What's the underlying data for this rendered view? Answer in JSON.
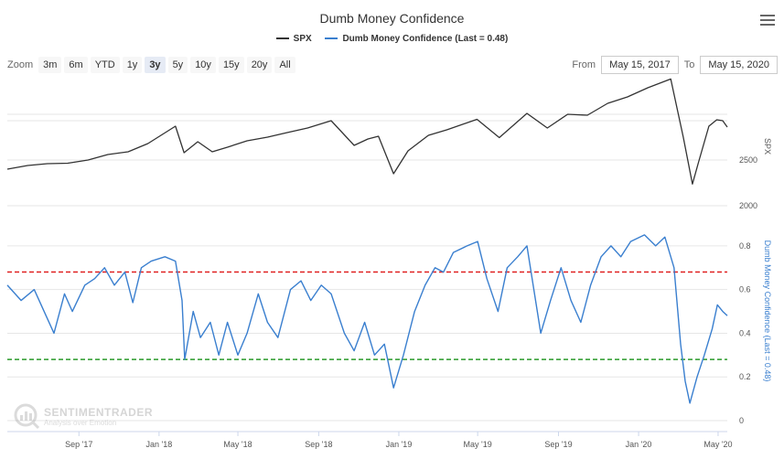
{
  "chart_data": {
    "type": "line",
    "title": "Dumb Money Confidence",
    "series": [
      {
        "name": "SPX",
        "color": "#333333",
        "axis": "SPX",
        "points": [
          [
            "2017-05-15",
            2400
          ],
          [
            "2017-06-15",
            2440
          ],
          [
            "2017-07-15",
            2460
          ],
          [
            "2017-08-15",
            2465
          ],
          [
            "2017-09-15",
            2500
          ],
          [
            "2017-10-15",
            2560
          ],
          [
            "2017-11-15",
            2590
          ],
          [
            "2017-12-15",
            2680
          ],
          [
            "2018-01-26",
            2870
          ],
          [
            "2018-02-08",
            2580
          ],
          [
            "2018-03-01",
            2700
          ],
          [
            "2018-03-23",
            2590
          ],
          [
            "2018-04-15",
            2640
          ],
          [
            "2018-05-15",
            2710
          ],
          [
            "2018-06-15",
            2750
          ],
          [
            "2018-07-15",
            2800
          ],
          [
            "2018-08-15",
            2850
          ],
          [
            "2018-09-20",
            2930
          ],
          [
            "2018-10-25",
            2660
          ],
          [
            "2018-11-15",
            2730
          ],
          [
            "2018-12-01",
            2760
          ],
          [
            "2018-12-24",
            2350
          ],
          [
            "2019-01-15",
            2600
          ],
          [
            "2019-02-15",
            2770
          ],
          [
            "2019-03-15",
            2830
          ],
          [
            "2019-04-30",
            2945
          ],
          [
            "2019-06-03",
            2745
          ],
          [
            "2019-07-15",
            3010
          ],
          [
            "2019-08-15",
            2850
          ],
          [
            "2019-09-15",
            3000
          ],
          [
            "2019-10-15",
            2990
          ],
          [
            "2019-11-15",
            3120
          ],
          [
            "2019-12-15",
            3190
          ],
          [
            "2020-01-15",
            3290
          ],
          [
            "2020-02-19",
            3386
          ],
          [
            "2020-03-09",
            2750
          ],
          [
            "2020-03-23",
            2237
          ],
          [
            "2020-04-01",
            2470
          ],
          [
            "2020-04-17",
            2870
          ],
          [
            "2020-04-29",
            2940
          ],
          [
            "2020-05-08",
            2930
          ],
          [
            "2020-05-15",
            2860
          ]
        ]
      },
      {
        "name": "Dumb Money Confidence (Last = 0.48)",
        "color": "#3a7fcf",
        "axis": "Dumb Money Confidence (Last = 0.48)",
        "points": [
          [
            "2017-05-15",
            0.62
          ],
          [
            "2017-06-05",
            0.55
          ],
          [
            "2017-06-25",
            0.6
          ],
          [
            "2017-07-10",
            0.5
          ],
          [
            "2017-07-25",
            0.4
          ],
          [
            "2017-08-10",
            0.58
          ],
          [
            "2017-08-22",
            0.5
          ],
          [
            "2017-09-10",
            0.62
          ],
          [
            "2017-09-25",
            0.65
          ],
          [
            "2017-10-10",
            0.7
          ],
          [
            "2017-10-25",
            0.62
          ],
          [
            "2017-11-10",
            0.68
          ],
          [
            "2017-11-22",
            0.54
          ],
          [
            "2017-12-05",
            0.7
          ],
          [
            "2017-12-20",
            0.73
          ],
          [
            "2018-01-10",
            0.75
          ],
          [
            "2018-01-26",
            0.73
          ],
          [
            "2018-02-05",
            0.55
          ],
          [
            "2018-02-09",
            0.28
          ],
          [
            "2018-02-22",
            0.5
          ],
          [
            "2018-03-05",
            0.38
          ],
          [
            "2018-03-20",
            0.45
          ],
          [
            "2018-04-02",
            0.3
          ],
          [
            "2018-04-15",
            0.45
          ],
          [
            "2018-05-01",
            0.3
          ],
          [
            "2018-05-15",
            0.4
          ],
          [
            "2018-06-01",
            0.58
          ],
          [
            "2018-06-15",
            0.45
          ],
          [
            "2018-07-01",
            0.38
          ],
          [
            "2018-07-20",
            0.6
          ],
          [
            "2018-08-05",
            0.64
          ],
          [
            "2018-08-20",
            0.55
          ],
          [
            "2018-09-05",
            0.62
          ],
          [
            "2018-09-20",
            0.58
          ],
          [
            "2018-10-10",
            0.4
          ],
          [
            "2018-10-25",
            0.32
          ],
          [
            "2018-11-10",
            0.45
          ],
          [
            "2018-11-25",
            0.3
          ],
          [
            "2018-12-10",
            0.35
          ],
          [
            "2018-12-24",
            0.15
          ],
          [
            "2019-01-08",
            0.3
          ],
          [
            "2019-01-25",
            0.5
          ],
          [
            "2019-02-10",
            0.62
          ],
          [
            "2019-02-25",
            0.7
          ],
          [
            "2019-03-10",
            0.68
          ],
          [
            "2019-03-25",
            0.77
          ],
          [
            "2019-04-15",
            0.8
          ],
          [
            "2019-05-01",
            0.82
          ],
          [
            "2019-05-15",
            0.65
          ],
          [
            "2019-06-01",
            0.5
          ],
          [
            "2019-06-15",
            0.7
          ],
          [
            "2019-07-01",
            0.75
          ],
          [
            "2019-07-15",
            0.8
          ],
          [
            "2019-08-05",
            0.4
          ],
          [
            "2019-08-20",
            0.55
          ],
          [
            "2019-09-05",
            0.7
          ],
          [
            "2019-09-20",
            0.55
          ],
          [
            "2019-10-05",
            0.45
          ],
          [
            "2019-10-20",
            0.62
          ],
          [
            "2019-11-05",
            0.75
          ],
          [
            "2019-11-20",
            0.8
          ],
          [
            "2019-12-05",
            0.75
          ],
          [
            "2019-12-20",
            0.82
          ],
          [
            "2020-01-10",
            0.85
          ],
          [
            "2020-01-27",
            0.8
          ],
          [
            "2020-02-10",
            0.84
          ],
          [
            "2020-02-24",
            0.7
          ],
          [
            "2020-03-05",
            0.35
          ],
          [
            "2020-03-12",
            0.18
          ],
          [
            "2020-03-19",
            0.08
          ],
          [
            "2020-03-30",
            0.2
          ],
          [
            "2020-04-10",
            0.3
          ],
          [
            "2020-04-22",
            0.42
          ],
          [
            "2020-04-30",
            0.53
          ],
          [
            "2020-05-08",
            0.5
          ],
          [
            "2020-05-15",
            0.48
          ]
        ]
      }
    ],
    "x_ticks": [
      "Sep '17",
      "Jan '18",
      "May '18",
      "Sep '18",
      "Jan '19",
      "May '19",
      "Sep '19",
      "Jan '20",
      "May '20"
    ],
    "x_tick_dates": [
      "2017-09-01",
      "2018-01-01",
      "2018-05-01",
      "2018-09-01",
      "2019-01-01",
      "2019-05-01",
      "2019-09-01",
      "2020-01-01",
      "2020-05-01"
    ],
    "xlim": [
      "2017-05-15",
      "2020-05-15"
    ],
    "spx_axis": {
      "label": "SPX",
      "ticks": [
        "2000",
        "2500"
      ],
      "tick_values": [
        2000,
        2500
      ],
      "ylim": [
        2000,
        3400
      ]
    },
    "dmc_axis": {
      "label": "Dumb Money Confidence (Last = 0.48)",
      "ticks": [
        "0",
        "0.2",
        "0.4",
        "0.6",
        "0.8"
      ],
      "tick_values": [
        0,
        0.2,
        0.4,
        0.6,
        0.8
      ],
      "ylim": [
        0,
        0.9
      ]
    },
    "reference_lines": [
      {
        "name": "excessive-optimism",
        "value": 0.68,
        "color": "#e02020"
      },
      {
        "name": "excessive-pessimism",
        "value": 0.28,
        "color": "#2a9a2a"
      }
    ]
  },
  "header": {
    "title": "Dumb Money Confidence"
  },
  "legend": [
    {
      "label": "SPX",
      "color": "#333333"
    },
    {
      "label": "Dumb Money Confidence (Last = 0.48)",
      "color": "#3a7fcf"
    }
  ],
  "zoom": {
    "label": "Zoom",
    "buttons": [
      "3m",
      "6m",
      "YTD",
      "1y",
      "3y",
      "5y",
      "10y",
      "15y",
      "20y",
      "All"
    ],
    "active": "3y"
  },
  "range": {
    "from_label": "From",
    "from_value": "May 15, 2017",
    "to_label": "To",
    "to_value": "May 15, 2020"
  },
  "watermark": {
    "brand": "SENTIMENTRADER",
    "tagline": "Analysis over Emotion"
  }
}
